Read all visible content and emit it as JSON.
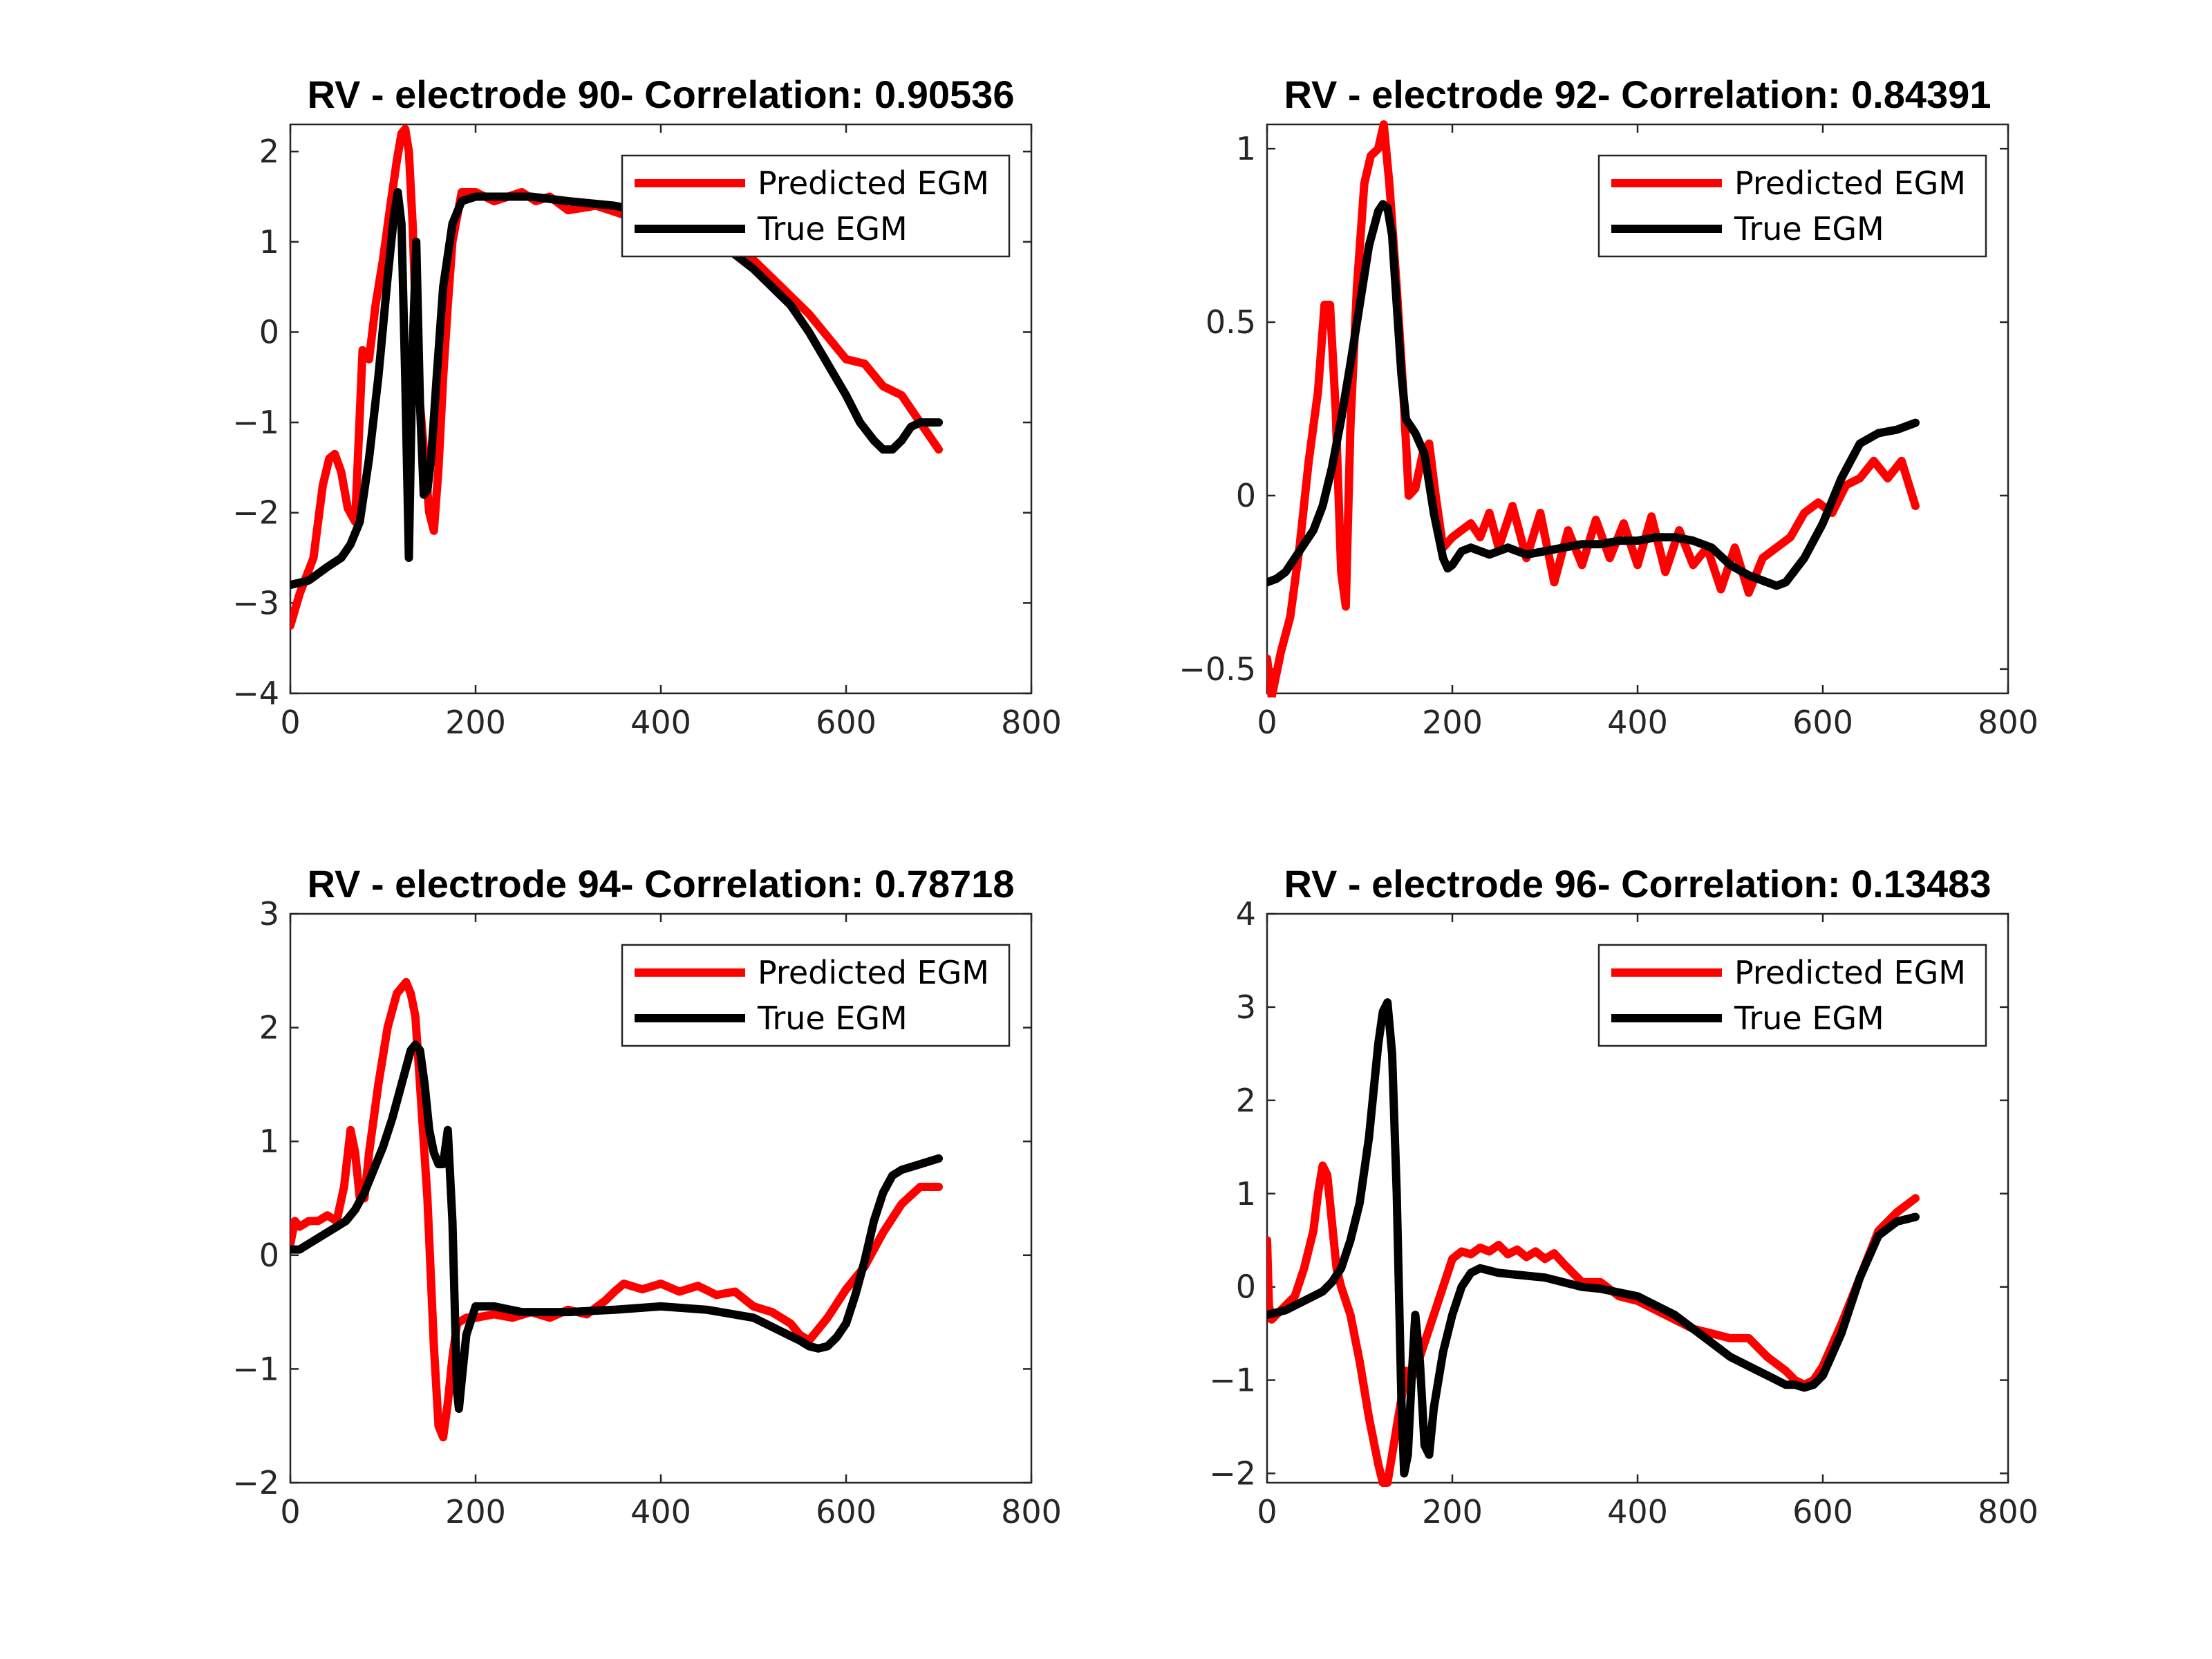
{
  "chart_data": [
    {
      "type": "line",
      "title": "RV - electrode 90- Correlation: 0.90536",
      "xlabel": "",
      "ylabel": "",
      "xlim": [
        0,
        800
      ],
      "ylim": [
        -4,
        2.3
      ],
      "xticks": [
        0,
        200,
        400,
        600,
        800
      ],
      "yticks": [
        -4,
        -3,
        -2,
        -1,
        0,
        1,
        2
      ],
      "legend": "top-right",
      "series": [
        {
          "name": "Predicted EGM",
          "color": "#ff0000",
          "x": [
            0,
            10,
            25,
            35,
            42,
            48,
            55,
            62,
            70,
            78,
            85,
            92,
            100,
            108,
            115,
            120,
            124,
            128,
            132,
            136,
            140,
            145,
            150,
            155,
            160,
            165,
            170,
            175,
            185,
            200,
            220,
            250,
            265,
            280,
            300,
            330,
            360,
            400,
            450,
            480,
            500,
            530,
            560,
            580,
            600,
            620,
            640,
            660,
            680,
            700
          ],
          "y": [
            -3.25,
            -2.9,
            -2.5,
            -1.7,
            -1.4,
            -1.35,
            -1.55,
            -1.95,
            -2.1,
            -0.2,
            -0.3,
            0.3,
            0.8,
            1.4,
            1.9,
            2.2,
            2.25,
            2.0,
            1.2,
            0.0,
            -0.8,
            -1.4,
            -2.0,
            -2.2,
            -1.5,
            -0.5,
            0.3,
            1.0,
            1.55,
            1.55,
            1.45,
            1.55,
            1.45,
            1.5,
            1.35,
            1.4,
            1.3,
            1.3,
            1.2,
            1.0,
            0.8,
            0.5,
            0.2,
            -0.05,
            -0.3,
            -0.35,
            -0.6,
            -0.7,
            -1.0,
            -1.3
          ]
        },
        {
          "name": "True EGM",
          "color": "#000000",
          "x": [
            0,
            20,
            40,
            55,
            65,
            75,
            85,
            95,
            105,
            112,
            116,
            120,
            124,
            128,
            132,
            136,
            140,
            144,
            148,
            152,
            158,
            165,
            175,
            185,
            200,
            220,
            260,
            300,
            350,
            400,
            450,
            500,
            540,
            560,
            580,
            600,
            615,
            630,
            640,
            650,
            660,
            670,
            680,
            690,
            700
          ],
          "y": [
            -2.8,
            -2.75,
            -2.6,
            -2.5,
            -2.35,
            -2.1,
            -1.4,
            -0.5,
            0.6,
            1.3,
            1.55,
            1.2,
            -0.5,
            -2.5,
            -0.2,
            1.0,
            -0.8,
            -1.8,
            -1.75,
            -1.4,
            -0.5,
            0.5,
            1.2,
            1.45,
            1.5,
            1.5,
            1.5,
            1.45,
            1.4,
            1.3,
            1.1,
            0.7,
            0.3,
            0.0,
            -0.35,
            -0.7,
            -1.0,
            -1.2,
            -1.3,
            -1.3,
            -1.2,
            -1.05,
            -1.0,
            -1.0,
            -1.0
          ]
        }
      ]
    },
    {
      "type": "line",
      "title": "RV - electrode 92- Correlation: 0.84391",
      "xlabel": "",
      "ylabel": "",
      "xlim": [
        0,
        800
      ],
      "ylim": [
        -0.57,
        1.07
      ],
      "xticks": [
        0,
        200,
        400,
        600,
        800
      ],
      "yticks": [
        -0.5,
        0,
        0.5,
        1
      ],
      "legend": "top-right",
      "series": [
        {
          "name": "Predicted EGM",
          "color": "#ff0000",
          "x": [
            0,
            5,
            15,
            25,
            35,
            45,
            55,
            62,
            68,
            74,
            80,
            85,
            90,
            97,
            105,
            112,
            120,
            126,
            132,
            140,
            147,
            153,
            160,
            168,
            175,
            182,
            190,
            200,
            210,
            220,
            230,
            240,
            250,
            265,
            280,
            295,
            310,
            325,
            340,
            355,
            370,
            385,
            400,
            415,
            430,
            445,
            460,
            475,
            490,
            505,
            520,
            535,
            550,
            565,
            580,
            595,
            610,
            625,
            640,
            655,
            670,
            685,
            700
          ],
          "y": [
            -0.47,
            -0.58,
            -0.45,
            -0.35,
            -0.15,
            0.1,
            0.3,
            0.55,
            0.55,
            0.25,
            -0.22,
            -0.32,
            0.2,
            0.6,
            0.9,
            0.98,
            1.0,
            1.07,
            0.9,
            0.6,
            0.3,
            0.0,
            0.02,
            0.12,
            0.15,
            0.0,
            -0.15,
            -0.12,
            -0.1,
            -0.08,
            -0.12,
            -0.05,
            -0.15,
            -0.03,
            -0.18,
            -0.05,
            -0.25,
            -0.1,
            -0.2,
            -0.07,
            -0.18,
            -0.08,
            -0.2,
            -0.06,
            -0.22,
            -0.1,
            -0.2,
            -0.15,
            -0.27,
            -0.15,
            -0.28,
            -0.18,
            -0.15,
            -0.12,
            -0.05,
            -0.02,
            -0.05,
            0.03,
            0.05,
            0.1,
            0.05,
            0.1,
            -0.03
          ]
        },
        {
          "name": "True EGM",
          "color": "#000000",
          "x": [
            0,
            10,
            20,
            30,
            40,
            50,
            60,
            70,
            80,
            90,
            100,
            110,
            120,
            125,
            130,
            135,
            140,
            145,
            150,
            160,
            170,
            180,
            190,
            195,
            200,
            210,
            220,
            240,
            260,
            280,
            300,
            320,
            340,
            360,
            380,
            400,
            420,
            440,
            460,
            480,
            500,
            520,
            540,
            550,
            560,
            580,
            600,
            620,
            640,
            660,
            680,
            700
          ],
          "y": [
            -0.25,
            -0.24,
            -0.22,
            -0.18,
            -0.14,
            -0.1,
            -0.03,
            0.08,
            0.22,
            0.38,
            0.55,
            0.72,
            0.82,
            0.84,
            0.83,
            0.75,
            0.55,
            0.35,
            0.22,
            0.18,
            0.12,
            -0.05,
            -0.18,
            -0.21,
            -0.2,
            -0.16,
            -0.15,
            -0.17,
            -0.15,
            -0.17,
            -0.16,
            -0.15,
            -0.14,
            -0.14,
            -0.13,
            -0.13,
            -0.12,
            -0.12,
            -0.13,
            -0.15,
            -0.2,
            -0.23,
            -0.25,
            -0.26,
            -0.25,
            -0.18,
            -0.08,
            0.05,
            0.15,
            0.18,
            0.19,
            0.21
          ]
        }
      ]
    },
    {
      "type": "line",
      "title": "RV - electrode 94- Correlation: 0.78718",
      "xlabel": "",
      "ylabel": "",
      "xlim": [
        0,
        800
      ],
      "ylim": [
        -2,
        3
      ],
      "xticks": [
        0,
        200,
        400,
        600,
        800
      ],
      "yticks": [
        -2,
        -1,
        0,
        1,
        2,
        3
      ],
      "legend": "top-right",
      "series": [
        {
          "name": "Predicted EGM",
          "color": "#ff0000",
          "x": [
            0,
            5,
            10,
            20,
            30,
            40,
            50,
            58,
            65,
            70,
            75,
            80,
            85,
            95,
            105,
            115,
            125,
            130,
            135,
            140,
            148,
            155,
            160,
            165,
            170,
            175,
            180,
            190,
            200,
            220,
            240,
            260,
            280,
            300,
            320,
            340,
            350,
            360,
            380,
            400,
            420,
            440,
            460,
            480,
            500,
            520,
            540,
            550,
            560,
            580,
            600,
            620,
            640,
            660,
            680,
            700
          ],
          "y": [
            0.1,
            0.3,
            0.25,
            0.3,
            0.3,
            0.35,
            0.3,
            0.6,
            1.1,
            0.9,
            0.5,
            0.5,
            0.9,
            1.5,
            2.0,
            2.3,
            2.4,
            2.3,
            2.1,
            1.5,
            0.5,
            -0.8,
            -1.5,
            -1.6,
            -1.3,
            -0.9,
            -0.6,
            -0.55,
            -0.55,
            -0.52,
            -0.55,
            -0.5,
            -0.55,
            -0.48,
            -0.52,
            -0.4,
            -0.32,
            -0.25,
            -0.3,
            -0.25,
            -0.32,
            -0.27,
            -0.35,
            -0.32,
            -0.45,
            -0.5,
            -0.6,
            -0.7,
            -0.75,
            -0.55,
            -0.3,
            -0.1,
            0.2,
            0.45,
            0.6,
            0.6
          ]
        },
        {
          "name": "True EGM",
          "color": "#000000",
          "x": [
            0,
            10,
            20,
            30,
            40,
            50,
            60,
            70,
            80,
            90,
            100,
            110,
            120,
            130,
            135,
            140,
            145,
            150,
            155,
            160,
            165,
            170,
            175,
            180,
            182,
            185,
            190,
            200,
            220,
            250,
            300,
            350,
            400,
            450,
            500,
            550,
            560,
            570,
            580,
            590,
            600,
            610,
            620,
            630,
            640,
            650,
            660,
            680,
            700
          ],
          "y": [
            0.05,
            0.05,
            0.1,
            0.15,
            0.2,
            0.25,
            0.3,
            0.4,
            0.55,
            0.75,
            0.95,
            1.2,
            1.5,
            1.8,
            1.85,
            1.8,
            1.5,
            1.1,
            0.9,
            0.8,
            0.8,
            1.1,
            0.3,
            -1.2,
            -1.35,
            -1.1,
            -0.7,
            -0.45,
            -0.45,
            -0.5,
            -0.5,
            -0.48,
            -0.45,
            -0.48,
            -0.55,
            -0.75,
            -0.8,
            -0.82,
            -0.8,
            -0.72,
            -0.6,
            -0.35,
            -0.05,
            0.3,
            0.55,
            0.7,
            0.75,
            0.8,
            0.85
          ]
        }
      ]
    },
    {
      "type": "line",
      "title": "RV - electrode 96- Correlation: 0.13483",
      "xlabel": "",
      "ylabel": "",
      "xlim": [
        0,
        800
      ],
      "ylim": [
        -2.1,
        4
      ],
      "xticks": [
        0,
        200,
        400,
        600,
        800
      ],
      "yticks": [
        -2,
        -1,
        0,
        1,
        2,
        3,
        4
      ],
      "legend": "top-right",
      "series": [
        {
          "name": "Predicted EGM",
          "color": "#ff0000",
          "x": [
            0,
            2,
            5,
            10,
            20,
            30,
            40,
            50,
            55,
            60,
            65,
            70,
            75,
            80,
            90,
            100,
            110,
            120,
            125,
            130,
            135,
            140,
            145,
            150,
            155,
            160,
            170,
            180,
            190,
            200,
            210,
            220,
            230,
            240,
            250,
            260,
            270,
            280,
            290,
            300,
            310,
            320,
            340,
            360,
            380,
            400,
            420,
            440,
            460,
            480,
            500,
            520,
            540,
            560,
            570,
            580,
            590,
            600,
            620,
            640,
            660,
            680,
            700
          ],
          "y": [
            0.5,
            -0.2,
            -0.35,
            -0.3,
            -0.2,
            -0.1,
            0.2,
            0.6,
            1.0,
            1.3,
            1.2,
            0.7,
            0.2,
            0.0,
            -0.3,
            -0.8,
            -1.4,
            -1.9,
            -2.1,
            -2.1,
            -1.8,
            -1.5,
            -1.2,
            -0.9,
            -1.0,
            -0.9,
            -0.6,
            -0.3,
            0.0,
            0.3,
            0.38,
            0.35,
            0.42,
            0.38,
            0.45,
            0.35,
            0.4,
            0.32,
            0.38,
            0.3,
            0.36,
            0.25,
            0.05,
            0.05,
            -0.1,
            -0.15,
            -0.25,
            -0.35,
            -0.45,
            -0.5,
            -0.55,
            -0.55,
            -0.75,
            -0.9,
            -1.0,
            -1.05,
            -1.0,
            -0.85,
            -0.4,
            0.1,
            0.6,
            0.8,
            0.95
          ]
        },
        {
          "name": "True EGM",
          "color": "#000000",
          "x": [
            0,
            20,
            40,
            60,
            70,
            80,
            90,
            100,
            110,
            115,
            120,
            125,
            130,
            135,
            140,
            145,
            148,
            152,
            156,
            160,
            165,
            170,
            175,
            180,
            190,
            200,
            210,
            220,
            230,
            250,
            280,
            300,
            320,
            340,
            360,
            400,
            420,
            440,
            460,
            480,
            500,
            520,
            540,
            560,
            570,
            580,
            590,
            600,
            620,
            640,
            660,
            680,
            700
          ],
          "y": [
            -0.3,
            -0.25,
            -0.15,
            -0.05,
            0.05,
            0.2,
            0.5,
            0.9,
            1.6,
            2.1,
            2.6,
            2.95,
            3.05,
            2.5,
            1.0,
            -1.2,
            -2.0,
            -1.8,
            -1.0,
            -0.3,
            -0.8,
            -1.7,
            -1.8,
            -1.3,
            -0.7,
            -0.3,
            0.0,
            0.15,
            0.2,
            0.15,
            0.12,
            0.1,
            0.05,
            0.0,
            -0.02,
            -0.1,
            -0.2,
            -0.3,
            -0.45,
            -0.6,
            -0.75,
            -0.85,
            -0.95,
            -1.05,
            -1.05,
            -1.08,
            -1.05,
            -0.95,
            -0.5,
            0.1,
            0.55,
            0.7,
            0.75
          ]
        }
      ]
    }
  ]
}
